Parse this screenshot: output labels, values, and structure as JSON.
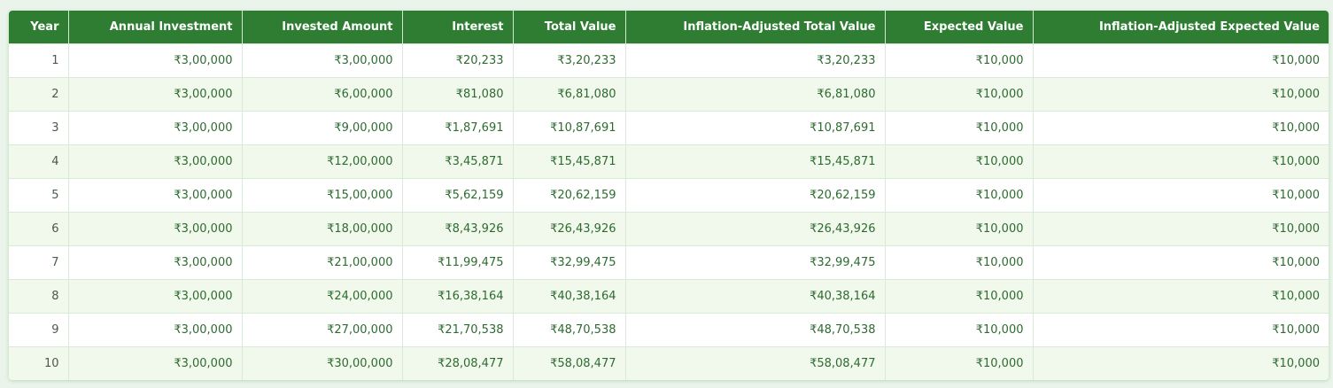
{
  "table": {
    "headers": [
      "Year",
      "Annual Investment",
      "Invested Amount",
      "Interest",
      "Total Value",
      "Inflation-Adjusted Total Value",
      "Expected Value",
      "Inflation-Adjusted Expected Value"
    ],
    "rows": [
      [
        "1",
        "₹3,00,000",
        "₹3,00,000",
        "₹20,233",
        "₹3,20,233",
        "₹3,20,233",
        "₹10,000",
        "₹10,000"
      ],
      [
        "2",
        "₹3,00,000",
        "₹6,00,000",
        "₹81,080",
        "₹6,81,080",
        "₹6,81,080",
        "₹10,000",
        "₹10,000"
      ],
      [
        "3",
        "₹3,00,000",
        "₹9,00,000",
        "₹1,87,691",
        "₹10,87,691",
        "₹10,87,691",
        "₹10,000",
        "₹10,000"
      ],
      [
        "4",
        "₹3,00,000",
        "₹12,00,000",
        "₹3,45,871",
        "₹15,45,871",
        "₹15,45,871",
        "₹10,000",
        "₹10,000"
      ],
      [
        "5",
        "₹3,00,000",
        "₹15,00,000",
        "₹5,62,159",
        "₹20,62,159",
        "₹20,62,159",
        "₹10,000",
        "₹10,000"
      ],
      [
        "6",
        "₹3,00,000",
        "₹18,00,000",
        "₹8,43,926",
        "₹26,43,926",
        "₹26,43,926",
        "₹10,000",
        "₹10,000"
      ],
      [
        "7",
        "₹3,00,000",
        "₹21,00,000",
        "₹11,99,475",
        "₹32,99,475",
        "₹32,99,475",
        "₹10,000",
        "₹10,000"
      ],
      [
        "8",
        "₹3,00,000",
        "₹24,00,000",
        "₹16,38,164",
        "₹40,38,164",
        "₹40,38,164",
        "₹10,000",
        "₹10,000"
      ],
      [
        "9",
        "₹3,00,000",
        "₹27,00,000",
        "₹21,70,538",
        "₹48,70,538",
        "₹48,70,538",
        "₹10,000",
        "₹10,000"
      ],
      [
        "10",
        "₹3,00,000",
        "₹30,00,000",
        "₹28,08,477",
        "₹58,08,477",
        "₹58,08,477",
        "₹10,000",
        "₹10,000"
      ]
    ]
  },
  "colors": {
    "header_bg": "#2e7d32",
    "header_text": "#ffffff",
    "alt_row_bg": "#f1f8ec",
    "cell_text": "#2e6b31"
  }
}
